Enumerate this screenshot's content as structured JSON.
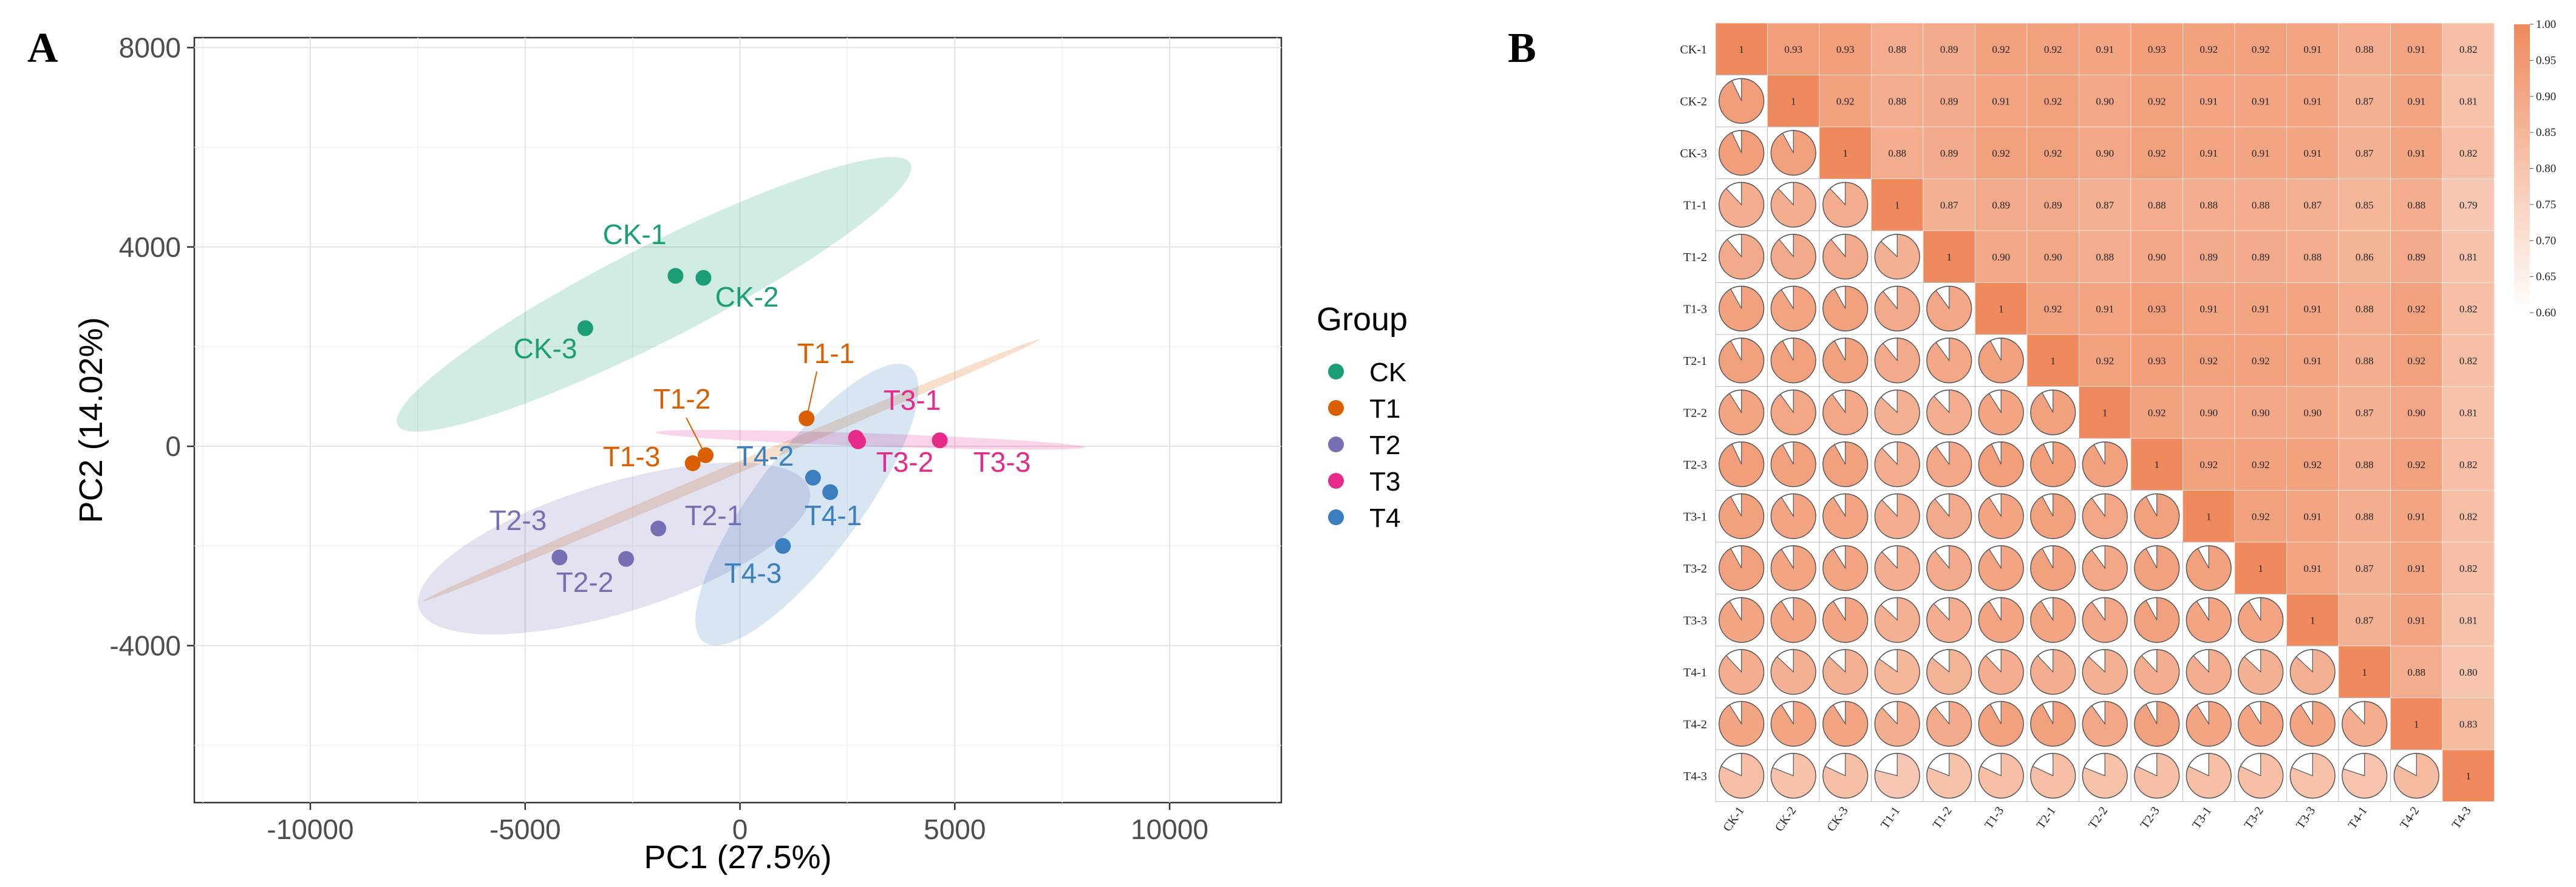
{
  "panel_a_letter": "A",
  "panel_b_letter": "B",
  "chart_data": [
    {
      "type": "scatter",
      "title": "",
      "xlabel": "PC1 (27.5%)",
      "ylabel": "PC2 (14.02%)",
      "xlim": [
        -12700,
        12600
      ],
      "ylim": [
        -7150,
        8200
      ],
      "xticks": [
        -10000,
        -5000,
        0,
        5000,
        10000
      ],
      "xtick_labels": [
        "-10000",
        "-5000",
        "0",
        "5000",
        "10000"
      ],
      "yticks": [
        -4000,
        0,
        4000,
        8000
      ],
      "ytick_labels": [
        "-4000",
        "0",
        "4000",
        "8000"
      ],
      "grid": true,
      "legend": {
        "title": "Group",
        "position": "right",
        "entries": [
          {
            "name": "CK",
            "color": "#1b9e77"
          },
          {
            "name": "T1",
            "color": "#d95f02"
          },
          {
            "name": "T2",
            "color": "#7570b3"
          },
          {
            "name": "T3",
            "color": "#e7298a"
          },
          {
            "name": "T4",
            "color": "#3b7fbf"
          }
        ]
      },
      "points": [
        {
          "label": "CK-1",
          "group": "CK",
          "x": -1500,
          "y": 3420
        },
        {
          "label": "CK-2",
          "group": "CK",
          "x": -850,
          "y": 3380
        },
        {
          "label": "CK-3",
          "group": "CK",
          "x": -3600,
          "y": 2370
        },
        {
          "label": "T1-1",
          "group": "T1",
          "x": 1550,
          "y": 560
        },
        {
          "label": "T1-2",
          "group": "T1",
          "x": -800,
          "y": -180
        },
        {
          "label": "T1-3",
          "group": "T1",
          "x": -1100,
          "y": -340
        },
        {
          "label": "T2-1",
          "group": "T2",
          "x": -1900,
          "y": -1650
        },
        {
          "label": "T2-2",
          "group": "T2",
          "x": -2650,
          "y": -2260
        },
        {
          "label": "T2-3",
          "group": "T2",
          "x": -4200,
          "y": -2230
        },
        {
          "label": "T3-1",
          "group": "T3",
          "x": 2700,
          "y": 170
        },
        {
          "label": "T3-2",
          "group": "T3",
          "x": 2750,
          "y": 100
        },
        {
          "label": "T3-3",
          "group": "T3",
          "x": 4650,
          "y": 120
        },
        {
          "label": "T4-1",
          "group": "T4",
          "x": 2100,
          "y": -920
        },
        {
          "label": "T4-2",
          "group": "T4",
          "x": 1700,
          "y": -630
        },
        {
          "label": "T4-3",
          "group": "T4",
          "x": 1000,
          "y": -2000
        }
      ],
      "ellipses": [
        {
          "group": "CK",
          "cx": -2000,
          "cy": 3050,
          "rx": 6700,
          "ry": 950,
          "angle_deg": 27
        },
        {
          "group": "T1",
          "cx": -200,
          "cy": -480,
          "rx": 7800,
          "ry": 110,
          "angle_deg": 23
        },
        {
          "group": "T2",
          "cx": -2930,
          "cy": -2050,
          "rx": 4750,
          "ry": 1300,
          "angle_deg": 17
        },
        {
          "group": "T3",
          "cx": 3030,
          "cy": 130,
          "rx": 5000,
          "ry": 130,
          "angle_deg": -2
        },
        {
          "group": "T4",
          "cx": 1560,
          "cy": -1170,
          "rx": 4000,
          "ry": 1050,
          "angle_deg": 53
        }
      ]
    },
    {
      "type": "heatmap",
      "title": "",
      "labels": [
        "CK-1",
        "CK-2",
        "CK-3",
        "T1-1",
        "T1-2",
        "T1-3",
        "T2-1",
        "T2-2",
        "T2-3",
        "T3-1",
        "T3-2",
        "T3-3",
        "T4-1",
        "T4-2",
        "T4-3"
      ],
      "upper_triangle_values": [
        [
          "1",
          "0.93",
          "0.93",
          "0.88",
          "0.89",
          "0.92",
          "0.92",
          "0.91",
          "0.93",
          "0.92",
          "0.92",
          "0.91",
          "0.88",
          "0.91",
          "0.82"
        ],
        [
          "1",
          "0.92",
          "0.88",
          "0.89",
          "0.91",
          "0.92",
          "0.90",
          "0.92",
          "0.91",
          "0.91",
          "0.91",
          "0.87",
          "0.91",
          "0.81"
        ],
        [
          "1",
          "0.88",
          "0.89",
          "0.92",
          "0.92",
          "0.90",
          "0.92",
          "0.91",
          "0.91",
          "0.91",
          "0.87",
          "0.91",
          "0.82"
        ],
        [
          "1",
          "0.87",
          "0.89",
          "0.89",
          "0.87",
          "0.88",
          "0.88",
          "0.88",
          "0.87",
          "0.85",
          "0.88",
          "0.79"
        ],
        [
          "1",
          "0.90",
          "0.90",
          "0.88",
          "0.90",
          "0.89",
          "0.89",
          "0.88",
          "0.86",
          "0.89",
          "0.81"
        ],
        [
          "1",
          "0.92",
          "0.91",
          "0.93",
          "0.91",
          "0.91",
          "0.91",
          "0.88",
          "0.92",
          "0.82"
        ],
        [
          "1",
          "0.92",
          "0.93",
          "0.92",
          "0.92",
          "0.91",
          "0.88",
          "0.92",
          "0.82"
        ],
        [
          "1",
          "0.92",
          "0.90",
          "0.90",
          "0.90",
          "0.87",
          "0.90",
          "0.81"
        ],
        [
          "1",
          "0.92",
          "0.92",
          "0.92",
          "0.88",
          "0.92",
          "0.82"
        ],
        [
          "1",
          "0.92",
          "0.91",
          "0.88",
          "0.91",
          "0.82"
        ],
        [
          "1",
          "0.91",
          "0.87",
          "0.91",
          "0.82"
        ],
        [
          "1",
          "0.87",
          "0.91",
          "0.81"
        ],
        [
          "1",
          "0.88",
          "0.80"
        ],
        [
          "1",
          "0.83"
        ],
        [
          "1"
        ]
      ],
      "lower_triangle": "pie glyphs showing the same correlation as the mirrored cell",
      "colorbar": {
        "min": 0.6,
        "max": 1.0,
        "ticks": [
          "1.00",
          "0.95",
          "0.90",
          "0.85",
          "0.80",
          "0.75",
          "0.70",
          "0.65",
          "0.60"
        ],
        "low_color": "#ffffff",
        "high_color": "#ef8a5e"
      }
    }
  ]
}
